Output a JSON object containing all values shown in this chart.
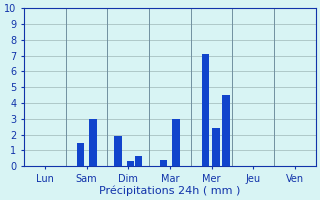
{
  "xlabel": "Précipitations 24h ( mm )",
  "ylim": [
    0,
    10
  ],
  "yticks": [
    0,
    1,
    2,
    3,
    4,
    5,
    6,
    7,
    8,
    9,
    10
  ],
  "day_labels": [
    "Lun",
    "Sam",
    "Dim",
    "Mar",
    "Mer",
    "Jeu",
    "Ven"
  ],
  "bars": [
    {
      "x": 1.35,
      "value": 1.5
    },
    {
      "x": 1.65,
      "value": 3.0
    },
    {
      "x": 2.25,
      "value": 1.9
    },
    {
      "x": 2.55,
      "value": 0.35
    },
    {
      "x": 2.75,
      "value": 0.65
    },
    {
      "x": 3.35,
      "value": 0.4
    },
    {
      "x": 3.65,
      "value": 3.0
    },
    {
      "x": 4.35,
      "value": 7.1
    },
    {
      "x": 4.6,
      "value": 2.4
    },
    {
      "x": 4.85,
      "value": 4.5
    }
  ],
  "n_days": 7,
  "bar_color": "#1144cc",
  "bg_color": "#d8f4f4",
  "grid_color": "#aec8c8",
  "sep_color": "#7090a0",
  "text_color": "#1133aa",
  "bar_width": 0.18,
  "tick_fontsize": 7,
  "label_fontsize": 8
}
